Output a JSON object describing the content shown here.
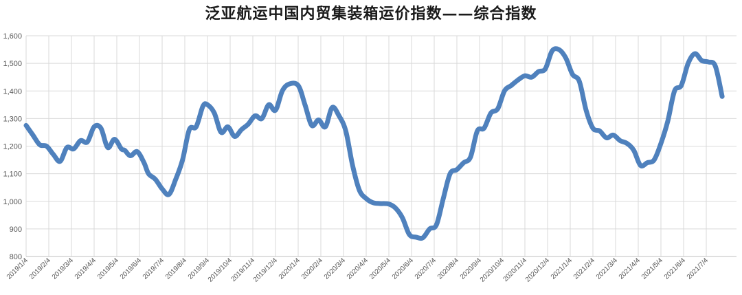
{
  "chart_data": {
    "type": "line",
    "title": "泛亚航运中国内贸集装箱运价指数——综合指数",
    "xlabel": "",
    "ylabel": "",
    "ylim": [
      800,
      1600
    ],
    "yticks": [
      "800",
      "900",
      "1,000",
      "1,100",
      "1,200",
      "1,300",
      "1,400",
      "1,500",
      "1,600"
    ],
    "xticks": [
      "2019/1/4",
      "2019/2/4",
      "2019/3/4",
      "2019/4/4",
      "2019/5/4",
      "2019/6/4",
      "2019/7/4",
      "2019/8/4",
      "2019/9/4",
      "2019/10/4",
      "2019/11/4",
      "2019/12/4",
      "2020/1/4",
      "2020/2/4",
      "2020/3/4",
      "2020/4/4",
      "2020/5/4",
      "2020/6/4",
      "2020/7/4",
      "2020/8/4",
      "2020/9/4",
      "2020/10/4",
      "2020/11/4",
      "2020/12/4",
      "2021/1/4",
      "2021/2/4",
      "2021/3/4",
      "2021/4/4",
      "2021/5/4",
      "2021/6/4",
      "2021/7/4"
    ],
    "grid": true,
    "line_color": "#4f81bd",
    "series": [
      {
        "x": [
          0,
          0.3,
          0.6,
          0.9,
          1.2,
          1.5,
          1.8,
          2.1,
          2.4,
          2.7,
          3.0,
          3.3,
          3.6,
          3.9,
          4.2,
          4.35,
          4.6,
          4.9,
          5.2,
          5.4,
          5.7,
          6.0,
          6.3,
          6.6,
          6.9,
          7.2,
          7.5,
          7.8,
          8.0,
          8.3,
          8.6,
          8.9,
          9.2,
          9.5,
          9.8,
          10.1,
          10.4,
          10.7,
          11.0,
          11.3,
          11.6,
          12.0,
          12.3,
          12.6,
          12.9,
          13.2,
          13.5,
          13.8,
          14.1,
          14.4,
          14.7,
          15.0,
          15.3,
          15.6,
          16.0,
          16.3,
          16.6,
          16.9,
          17.2,
          17.5,
          17.8,
          18.1,
          18.4,
          18.7,
          19.0,
          19.3,
          19.6,
          19.9,
          20.2,
          20.5,
          20.8,
          21.1,
          21.4,
          21.7,
          22.0,
          22.3,
          22.6,
          22.9,
          23.2,
          23.5,
          23.8,
          24.1,
          24.4,
          24.7,
          25.0,
          25.3,
          25.6,
          25.9,
          26.2,
          26.5,
          26.8,
          27.1,
          27.4,
          27.7,
          28.0,
          28.3,
          28.6,
          28.9,
          29.2,
          29.5,
          29.8,
          30.1,
          30.4,
          30.7
        ],
        "values": [
          1275,
          1240,
          1205,
          1200,
          1170,
          1145,
          1195,
          1190,
          1220,
          1215,
          1270,
          1265,
          1195,
          1225,
          1190,
          1185,
          1165,
          1180,
          1140,
          1100,
          1080,
          1045,
          1025,
          1080,
          1150,
          1260,
          1270,
          1345,
          1350,
          1320,
          1250,
          1270,
          1235,
          1260,
          1280,
          1310,
          1300,
          1350,
          1330,
          1400,
          1425,
          1420,
          1350,
          1275,
          1295,
          1270,
          1340,
          1310,
          1255,
          1130,
          1040,
          1010,
          995,
          992,
          990,
          975,
          940,
          880,
          870,
          868,
          900,
          915,
          1010,
          1100,
          1115,
          1140,
          1160,
          1255,
          1265,
          1320,
          1335,
          1400,
          1420,
          1440,
          1455,
          1450,
          1470,
          1480,
          1545,
          1550,
          1520,
          1460,
          1435,
          1330,
          1265,
          1255,
          1230,
          1240,
          1220,
          1210,
          1185,
          1130,
          1140,
          1150,
          1210,
          1290,
          1400,
          1420,
          1500,
          1535,
          1510,
          1505,
          1490,
          1380
        ]
      }
    ]
  }
}
